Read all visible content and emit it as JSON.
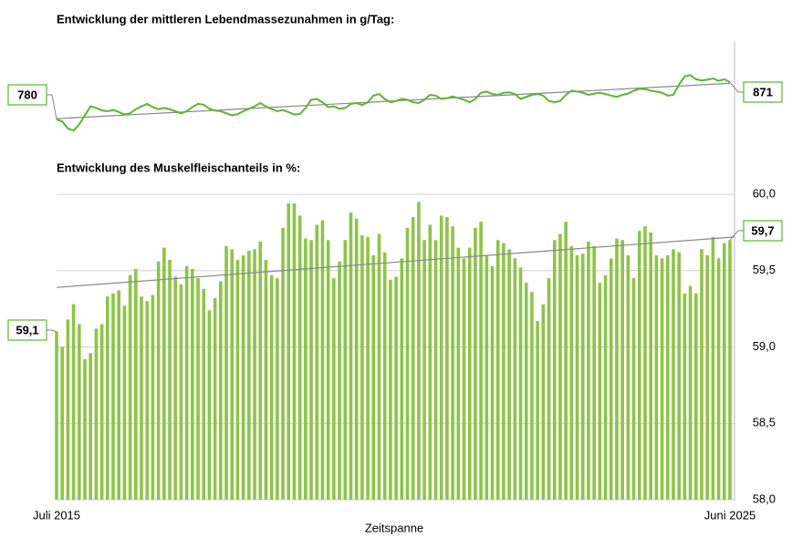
{
  "chart_data": [
    {
      "type": "line",
      "title": "Entwicklung der mittleren Lebendmassezunahmen in g/Tag:",
      "color": "#5cb531",
      "trend_color": "#888888",
      "ylim": [
        730,
        920
      ],
      "values": [
        780,
        775,
        758,
        753,
        768,
        790,
        812,
        808,
        802,
        800,
        803,
        798,
        792,
        795,
        805,
        812,
        818,
        810,
        805,
        808,
        805,
        800,
        795,
        800,
        810,
        818,
        816,
        806,
        802,
        800,
        795,
        790,
        793,
        800,
        806,
        812,
        820,
        812,
        805,
        800,
        803,
        798,
        792,
        793,
        808,
        828,
        830,
        822,
        810,
        812,
        806,
        808,
        818,
        820,
        815,
        822,
        838,
        842,
        830,
        822,
        825,
        830,
        828,
        822,
        820,
        828,
        840,
        838,
        830,
        832,
        836,
        832,
        828,
        822,
        830,
        845,
        848,
        842,
        840,
        845,
        846,
        842,
        830,
        835,
        840,
        842,
        838,
        825,
        822,
        825,
        840,
        850,
        848,
        845,
        840,
        843,
        845,
        842,
        838,
        835,
        840,
        843,
        850,
        855,
        854,
        850,
        848,
        845,
        838,
        840,
        865,
        885,
        888,
        878,
        875,
        877,
        880,
        874,
        878,
        871
      ],
      "value_labels": [
        "780",
        null,
        null,
        null,
        null,
        null,
        null,
        null,
        null,
        null,
        null,
        null,
        null,
        null,
        null,
        null,
        null,
        null,
        null,
        null,
        null,
        null,
        null,
        null,
        null,
        null,
        null,
        null,
        null,
        null,
        null,
        null,
        null,
        null,
        null,
        null,
        null,
        null,
        null,
        null,
        null,
        null,
        null,
        null,
        null,
        null,
        null,
        null,
        null,
        null,
        null,
        null,
        null,
        null,
        null,
        null,
        null,
        null,
        null,
        null,
        null,
        null,
        null,
        null,
        null,
        null,
        null,
        null,
        null,
        null,
        null,
        null,
        null,
        null,
        null,
        null,
        null,
        null,
        null,
        null,
        null,
        null,
        null,
        null,
        null,
        null,
        null,
        null,
        null,
        null,
        null,
        null,
        null,
        null,
        null,
        null,
        null,
        null,
        null,
        null,
        null,
        null,
        null,
        null,
        null,
        null,
        null,
        null,
        null,
        null,
        null,
        null,
        null,
        null,
        null,
        null,
        null,
        null,
        null,
        "871"
      ],
      "trendline": [
        782,
        868
      ]
    },
    {
      "type": "bar",
      "title": "Entwicklung des Muskelfleischanteils in %:",
      "x_label": "Zeitspanne",
      "color": "#8dc448",
      "trend_color": "#888888",
      "grid": true,
      "ylim": [
        58,
        60
      ],
      "yticks": [
        {
          "value": 58,
          "label": "58,0"
        },
        {
          "value": 58.5,
          "label": "58,5"
        },
        {
          "value": 59,
          "label": "59,0"
        },
        {
          "value": 59.5,
          "label": "59,5"
        },
        {
          "value": 60,
          "label": "60,0"
        }
      ],
      "categories": [
        "Juli 2015",
        null,
        null,
        null,
        null,
        null,
        null,
        null,
        null,
        null,
        null,
        null,
        null,
        null,
        null,
        null,
        null,
        null,
        null,
        null,
        null,
        null,
        null,
        null,
        null,
        null,
        null,
        null,
        null,
        null,
        null,
        null,
        null,
        null,
        null,
        null,
        null,
        null,
        null,
        null,
        null,
        null,
        null,
        null,
        null,
        null,
        null,
        null,
        null,
        null,
        null,
        null,
        null,
        null,
        null,
        null,
        null,
        null,
        null,
        null,
        null,
        null,
        null,
        null,
        null,
        null,
        null,
        null,
        null,
        null,
        null,
        null,
        null,
        null,
        null,
        null,
        null,
        null,
        null,
        null,
        null,
        null,
        null,
        null,
        null,
        null,
        null,
        null,
        null,
        null,
        null,
        null,
        null,
        null,
        null,
        null,
        null,
        null,
        null,
        null,
        null,
        null,
        null,
        null,
        null,
        null,
        null,
        null,
        null,
        null,
        null,
        null,
        null,
        null,
        null,
        null,
        null,
        null,
        null,
        "Juni 2025"
      ],
      "values": [
        59.1,
        59.0,
        59.18,
        59.28,
        59.15,
        58.92,
        58.96,
        59.12,
        59.15,
        59.33,
        59.35,
        59.37,
        59.27,
        59.47,
        59.51,
        59.33,
        59.3,
        59.34,
        59.56,
        59.65,
        59.57,
        59.46,
        59.41,
        59.53,
        59.51,
        59.45,
        59.38,
        59.24,
        59.32,
        59.43,
        59.66,
        59.64,
        59.57,
        59.6,
        59.63,
        59.64,
        59.69,
        59.57,
        59.47,
        59.45,
        59.78,
        59.94,
        59.94,
        59.86,
        59.71,
        59.7,
        59.8,
        59.83,
        59.7,
        59.45,
        59.56,
        59.7,
        59.88,
        59.84,
        59.73,
        59.72,
        59.6,
        59.74,
        59.62,
        59.44,
        59.46,
        59.58,
        59.78,
        59.85,
        59.95,
        59.7,
        59.8,
        59.7,
        59.86,
        59.85,
        59.79,
        59.65,
        59.58,
        59.65,
        59.78,
        59.82,
        59.6,
        59.53,
        59.7,
        59.68,
        59.64,
        59.58,
        59.52,
        59.42,
        59.36,
        59.17,
        59.28,
        59.45,
        59.7,
        59.74,
        59.82,
        59.66,
        59.6,
        59.61,
        59.69,
        59.66,
        59.42,
        59.47,
        59.58,
        59.71,
        59.7,
        59.6,
        59.45,
        59.76,
        59.79,
        59.75,
        59.6,
        59.58,
        59.6,
        59.64,
        59.62,
        59.35,
        59.4,
        59.35,
        59.64,
        59.6,
        59.72,
        59.58,
        59.68,
        59.7
      ],
      "value_labels": [
        "59,1",
        null,
        null,
        null,
        null,
        null,
        null,
        null,
        null,
        null,
        null,
        null,
        null,
        null,
        null,
        null,
        null,
        null,
        null,
        null,
        null,
        null,
        null,
        null,
        null,
        null,
        null,
        null,
        null,
        null,
        null,
        null,
        null,
        null,
        null,
        null,
        null,
        null,
        null,
        null,
        null,
        null,
        null,
        null,
        null,
        null,
        null,
        null,
        null,
        null,
        null,
        null,
        null,
        null,
        null,
        null,
        null,
        null,
        null,
        null,
        null,
        null,
        null,
        null,
        null,
        null,
        null,
        null,
        null,
        null,
        null,
        null,
        null,
        null,
        null,
        null,
        null,
        null,
        null,
        null,
        null,
        null,
        null,
        null,
        null,
        null,
        null,
        null,
        null,
        null,
        null,
        null,
        null,
        null,
        null,
        null,
        null,
        null,
        null,
        null,
        null,
        null,
        null,
        null,
        null,
        null,
        null,
        null,
        null,
        null,
        null,
        null,
        null,
        null,
        null,
        null,
        null,
        null,
        null,
        "59,7"
      ],
      "trendline": [
        59.39,
        59.72
      ]
    }
  ]
}
